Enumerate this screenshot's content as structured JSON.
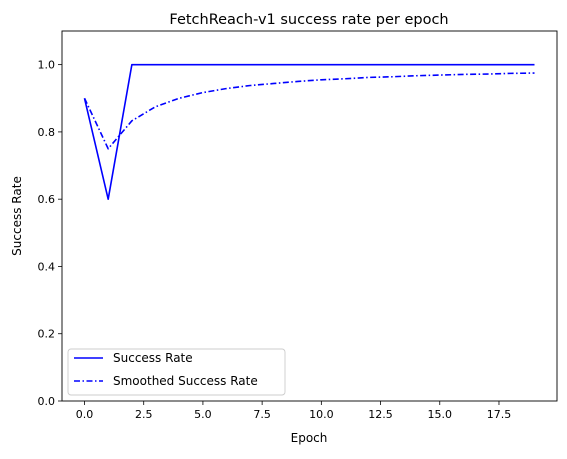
{
  "chart_data": {
    "type": "line",
    "title": "FetchReach-v1 success rate per epoch",
    "xlabel": "Epoch",
    "ylabel": "Success Rate",
    "xlim": [
      -0.95,
      19.95
    ],
    "ylim": [
      0.0,
      1.1
    ],
    "xticks": [
      0.0,
      2.5,
      5.0,
      7.5,
      10.0,
      12.5,
      15.0,
      17.5
    ],
    "xtick_labels": [
      "0.0",
      "2.5",
      "5.0",
      "7.5",
      "10.0",
      "12.5",
      "15.0",
      "17.5"
    ],
    "yticks": [
      0.0,
      0.2,
      0.4,
      0.6,
      0.8,
      1.0
    ],
    "ytick_labels": [
      "0.0",
      "0.2",
      "0.4",
      "0.6",
      "0.8",
      "1.0"
    ],
    "grid": false,
    "legend_position": "lower-left",
    "x": [
      0,
      1,
      2,
      3,
      4,
      5,
      6,
      7,
      8,
      9,
      10,
      11,
      12,
      13,
      14,
      15,
      16,
      17,
      18,
      19
    ],
    "series": [
      {
        "name": "Success Rate",
        "style": "solid",
        "color": "#0000ff",
        "values": [
          0.9,
          0.6,
          1.0,
          1.0,
          1.0,
          1.0,
          1.0,
          1.0,
          1.0,
          1.0,
          1.0,
          1.0,
          1.0,
          1.0,
          1.0,
          1.0,
          1.0,
          1.0,
          1.0,
          1.0
        ]
      },
      {
        "name": "Smoothed Success Rate",
        "style": "dashdot",
        "color": "#0000ff",
        "values": [
          0.9,
          0.75,
          0.833,
          0.875,
          0.9,
          0.917,
          0.929,
          0.938,
          0.944,
          0.95,
          0.955,
          0.958,
          0.962,
          0.964,
          0.967,
          0.969,
          0.971,
          0.972,
          0.974,
          0.975
        ]
      }
    ]
  }
}
